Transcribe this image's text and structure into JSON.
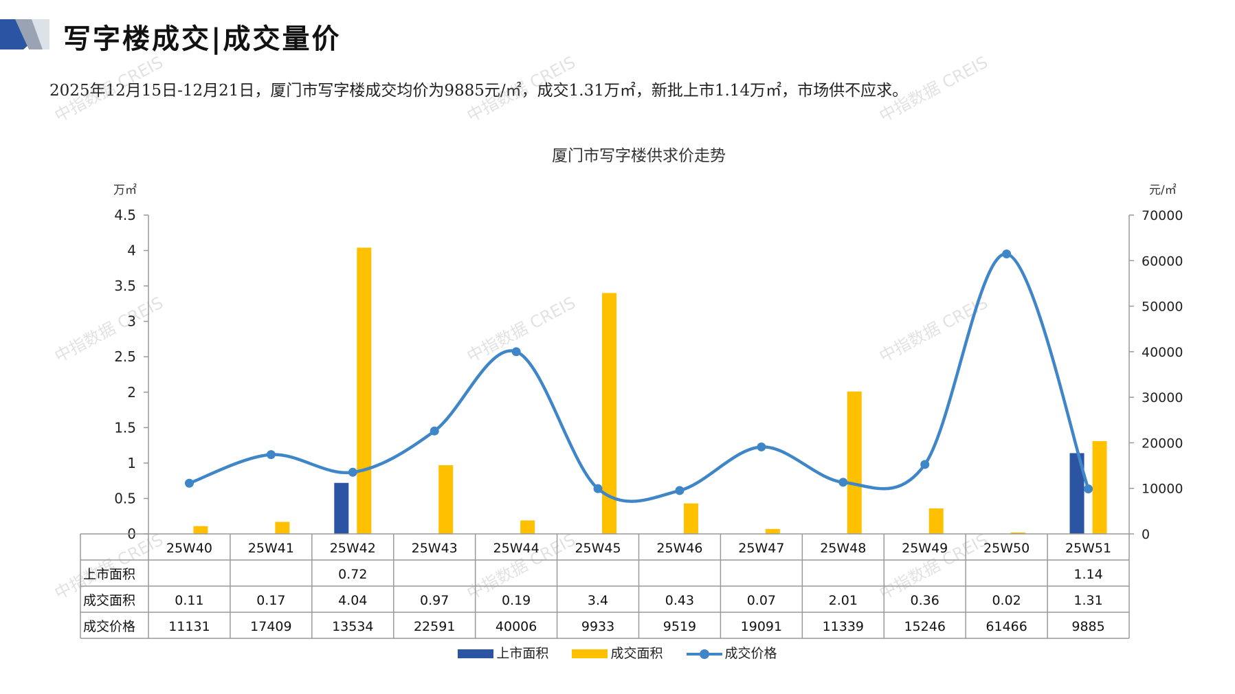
{
  "header": {
    "title": "写字楼成交|成交量价",
    "summary": "2025年12月15日-12月21日，厦门市写字楼成交均价为9885元/㎡，成交1.31万㎡，新批上市1.14万㎡，市场供不应求。"
  },
  "watermark": "中指数据 CREIS",
  "colors": {
    "supply": "#2b55a3",
    "deal": "#ffc000",
    "price": "#3f86c8",
    "accent": "#2b55a3"
  },
  "chart_data": {
    "type": "bar",
    "title": "厦门市写字楼供求价走势",
    "y_left_unit": "万㎡",
    "y_right_unit": "元/㎡",
    "ylim_left": [
      0,
      4.5
    ],
    "ylim_right": [
      0,
      70000
    ],
    "y_left_ticks": [
      "0",
      "0.5",
      "1",
      "1.5",
      "2",
      "2.5",
      "3",
      "3.5",
      "4",
      "4.5"
    ],
    "y_right_ticks": [
      "0",
      "10000",
      "20000",
      "30000",
      "40000",
      "50000",
      "60000",
      "70000"
    ],
    "categories": [
      "25W40",
      "25W41",
      "25W42",
      "25W43",
      "25W44",
      "25W45",
      "25W46",
      "25W47",
      "25W48",
      "25W49",
      "25W50",
      "25W51"
    ],
    "series": [
      {
        "name": "上市面积",
        "type": "bar",
        "axis": "left",
        "values": [
          null,
          null,
          0.72,
          null,
          null,
          null,
          null,
          null,
          null,
          null,
          null,
          1.14
        ],
        "labels": [
          "",
          "",
          "0.72",
          "",
          "",
          "",
          "",
          "",
          "",
          "",
          "",
          "1.14"
        ]
      },
      {
        "name": "成交面积",
        "type": "bar",
        "axis": "left",
        "values": [
          0.11,
          0.17,
          4.04,
          0.97,
          0.19,
          3.4,
          0.43,
          0.07,
          2.01,
          0.36,
          0.02,
          1.31
        ],
        "labels": [
          "0.11",
          "0.17",
          "4.04",
          "0.97",
          "0.19",
          "3.4",
          "0.43",
          "0.07",
          "2.01",
          "0.36",
          "0.02",
          "1.31"
        ]
      },
      {
        "name": "成交价格",
        "type": "line",
        "axis": "right",
        "values": [
          11131,
          17409,
          13534,
          22591,
          40006,
          9933,
          9519,
          19091,
          11339,
          15246,
          61466,
          9885
        ],
        "labels": [
          "11131",
          "17409",
          "13534",
          "22591",
          "40006",
          "9933",
          "9519",
          "19091",
          "11339",
          "15246",
          "61466",
          "9885"
        ]
      }
    ],
    "legend_position": "bottom"
  }
}
